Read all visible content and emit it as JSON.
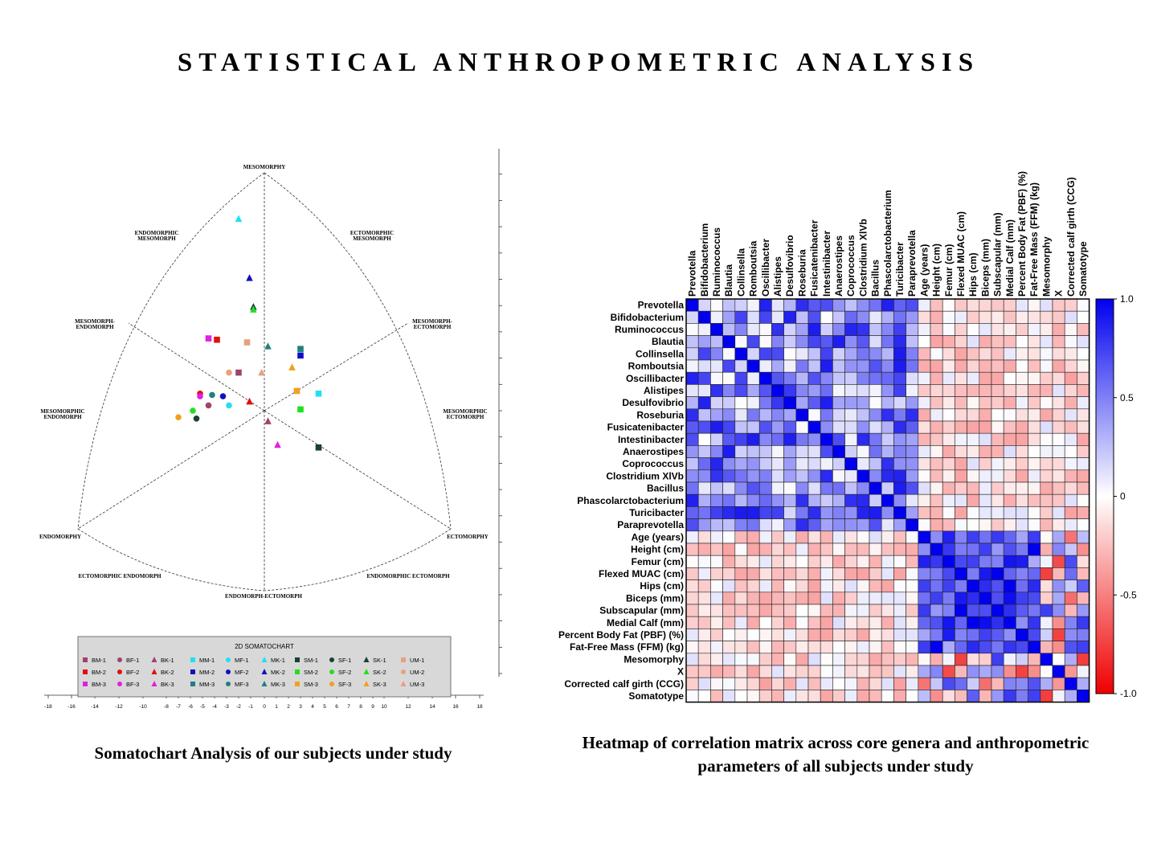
{
  "page": {
    "title": "STATISTICAL ANTHROPOMETRIC ANALYSIS",
    "caption_left": "Somatochart Analysis of our subjects under study",
    "caption_right": "Heatmap of correlation matrix across core genera and anthropometric parameters of all subjects under study"
  },
  "chart_data": [
    {
      "type": "scatter",
      "title": "",
      "legend_title": "2D SOMATOCHART",
      "legend_placement": "bottom",
      "xlim": [
        -18,
        18
      ],
      "ylim": [
        -20,
        18
      ],
      "x_ticks": [
        -18,
        -16,
        -14,
        -12,
        -10,
        -8,
        -7,
        -6,
        -5,
        -4,
        -3,
        -2,
        -1,
        0,
        1,
        2,
        3,
        4,
        5,
        6,
        7,
        8,
        9,
        10,
        12,
        14,
        16,
        18
      ],
      "y_ticks": [
        18,
        16,
        14,
        12,
        10,
        8,
        6,
        4,
        2,
        0,
        -2,
        -4,
        -6,
        -8,
        -10,
        -12,
        -14,
        -16,
        -18,
        -20
      ],
      "region_labels": {
        "top": "MESOMORPHY",
        "endo_meso": [
          "ENDOMORPHIC",
          "MESOMORPH"
        ],
        "ecto_meso": [
          "ECTOMORPHIC",
          "MESOMORPH"
        ],
        "meso_endo": [
          "MESOMORPH-",
          "ENDOMORPH"
        ],
        "meso_ecto": [
          "MESOMORPH-",
          "ECTOMORPH"
        ],
        "mesomorphic_endo": [
          "MESOMORPHIC",
          "ENDOMORPH"
        ],
        "mesomorphic_ecto": [
          "MESOMORPHIC",
          "ECTOMORPH"
        ],
        "endomorphy": "ENDOMORPHY",
        "ectomorphy": "ECTOMORPHY",
        "ecto_endo": "ECTOMORPHIC ENDOMORPH",
        "endo_ecto": "ENDOMORPHIC ECTOMORPH",
        "bottom": "ENDOMORPH-ECTOMORPH"
      },
      "series": [
        {
          "name": "BM-1",
          "marker": "square",
          "color": "#a0436a",
          "x": -2,
          "y": 2.9
        },
        {
          "name": "BF-1",
          "marker": "circle",
          "color": "#a0436a",
          "x": -4.5,
          "y": 0.4
        },
        {
          "name": "BK-1",
          "marker": "triangle",
          "color": "#a0436a",
          "x": 0.3,
          "y": -0.8
        },
        {
          "name": "MM-1",
          "marker": "square",
          "color": "#22e0f0",
          "x": 4.5,
          "y": 1.3
        },
        {
          "name": "MF-1",
          "marker": "circle",
          "color": "#22e0f0",
          "x": -2.8,
          "y": 0.4
        },
        {
          "name": "MK-1",
          "marker": "triangle",
          "color": "#22e0f0",
          "x": -2,
          "y": 14.6
        },
        {
          "name": "SM-1",
          "marker": "square",
          "color": "#1a4030",
          "x": 4.5,
          "y": -2.8
        },
        {
          "name": "SF-1",
          "marker": "circle",
          "color": "#1a4030",
          "x": -5.5,
          "y": -0.6
        },
        {
          "name": "SK-1",
          "marker": "triangle",
          "color": "#1a4030",
          "x": -0.8,
          "y": 7.9
        },
        {
          "name": "UM-1",
          "marker": "square",
          "color": "#e8a080",
          "x": -1.3,
          "y": 5.2
        },
        {
          "name": "BM-2",
          "marker": "square",
          "color": "#e01010",
          "x": -3.8,
          "y": 5.4
        },
        {
          "name": "BF-2",
          "marker": "circle",
          "color": "#e01010",
          "x": -5.2,
          "y": 1.3
        },
        {
          "name": "BK-2",
          "marker": "triangle",
          "color": "#e01010",
          "x": -1.1,
          "y": 0.7
        },
        {
          "name": "MM-2",
          "marker": "square",
          "color": "#1010c0",
          "x": 3,
          "y": 4.2
        },
        {
          "name": "MF-2",
          "marker": "circle",
          "color": "#1010c0",
          "x": -3.3,
          "y": 1.1
        },
        {
          "name": "MK-2",
          "marker": "triangle",
          "color": "#1010c0",
          "x": -1.1,
          "y": 10.1
        },
        {
          "name": "SM-2",
          "marker": "square",
          "color": "#20e020",
          "x": 3,
          "y": 0.1
        },
        {
          "name": "SF-2",
          "marker": "circle",
          "color": "#20e020",
          "x": -5.8,
          "y": 0
        },
        {
          "name": "SK-2",
          "marker": "triangle",
          "color": "#20e020",
          "x": -0.8,
          "y": 7.7
        },
        {
          "name": "UM-2",
          "marker": "circle",
          "color": "#e8a080",
          "x": -2.8,
          "y": 2.9
        },
        {
          "name": "BM-3",
          "marker": "square",
          "color": "#e020e0",
          "x": -4.5,
          "y": 5.5
        },
        {
          "name": "BF-3",
          "marker": "circle",
          "color": "#e020e0",
          "x": -5.2,
          "y": 1.1
        },
        {
          "name": "BK-3",
          "marker": "triangle",
          "color": "#e020e0",
          "x": 1.1,
          "y": -2.6
        },
        {
          "name": "MM-3",
          "marker": "square",
          "color": "#208080",
          "x": 3,
          "y": 4.7
        },
        {
          "name": "MF-3",
          "marker": "circle",
          "color": "#208080",
          "x": -4.2,
          "y": 1.2
        },
        {
          "name": "MK-3",
          "marker": "triangle",
          "color": "#208080",
          "x": 0.3,
          "y": 4.9
        },
        {
          "name": "SM-3",
          "marker": "square",
          "color": "#f0a020",
          "x": 2.7,
          "y": 1.5
        },
        {
          "name": "SF-3",
          "marker": "circle",
          "color": "#f0a020",
          "x": -7,
          "y": -0.5
        },
        {
          "name": "SK-3",
          "marker": "triangle",
          "color": "#f0a020",
          "x": 2.3,
          "y": 3.3
        },
        {
          "name": "UM-3",
          "marker": "triangle",
          "color": "#e8a080",
          "x": -0.2,
          "y": 2.9
        }
      ]
    },
    {
      "type": "heatmap",
      "title": "",
      "scale_colors": {
        "positive": "#0000ee",
        "zero": "#ffffff",
        "negative": "#ee0000"
      },
      "colorbar_ticks": [
        "1.0",
        "0.5",
        "0",
        "-0.5",
        "-1.0"
      ],
      "colorbar_values": [
        1.0,
        0.5,
        0,
        -0.5,
        -1.0
      ],
      "variables": [
        "Prevotella",
        "Bifidobacterium",
        "Ruminococcus",
        "Blautia",
        "Collinsella",
        "Romboutsia",
        "Oscillibacter",
        "Alistipes",
        "Desulfovibrio",
        "Roseburia",
        "Fusicatenibacter",
        "Intestinibacter",
        "Anaerostipes",
        "Coprococcus",
        "Clostridium XlVb",
        "Bacillus",
        "Phascolarctobacterium",
        "Turicibacter",
        "Paraprevotella",
        "Age (years)",
        "Height (cm)",
        "Femur (cm)",
        "Flexed MUAC (cm)",
        "Hips (cm)",
        "Biceps (mm)",
        "Subscapular (mm)",
        "Medial Calf (mm)",
        "Percent Body Fat (PBF) (%)",
        "Fat-Free Mass (FFM) (kg)",
        "Mesomorphy",
        "X",
        "Corrected calf girth (CCG)",
        "Somatotype"
      ],
      "genera_count": 19,
      "pattern_note_values": {
        "genera_block_typical": 0.4,
        "anthro_block_typical": 0.75,
        "cross_block_typical": -0.12
      }
    }
  ]
}
